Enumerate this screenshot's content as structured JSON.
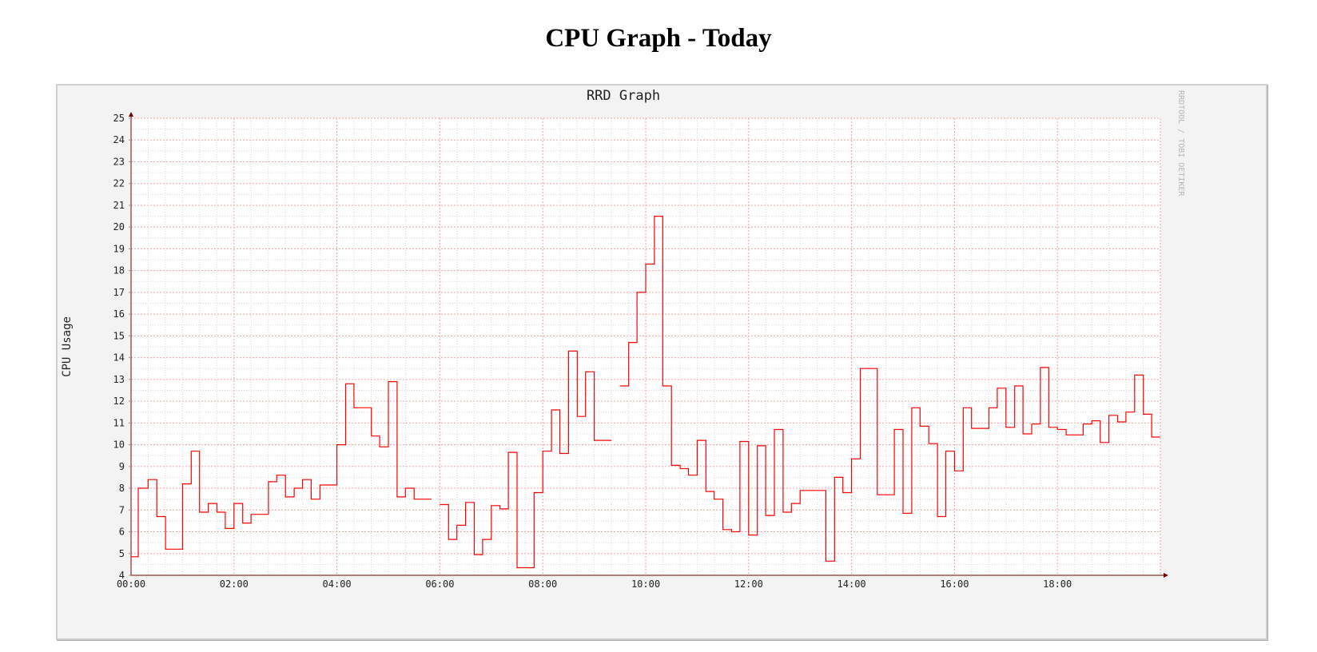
{
  "page": {
    "title": "CPU Graph - Today"
  },
  "chart_data": {
    "type": "line",
    "step": true,
    "title": "RRD Graph",
    "xlabel": "",
    "ylabel": "CPU Usage",
    "watermark": "RRDTOOL / TOBI OETIKER",
    "xlim": [
      0,
      20
    ],
    "ylim": [
      4,
      25
    ],
    "xticks": [
      "00:00",
      "02:00",
      "04:00",
      "06:00",
      "08:00",
      "10:00",
      "12:00",
      "14:00",
      "16:00",
      "18:00"
    ],
    "yticks": [
      4,
      5,
      6,
      7,
      8,
      9,
      10,
      11,
      12,
      13,
      14,
      15,
      16,
      17,
      18,
      19,
      20,
      21,
      22,
      23,
      24,
      25
    ],
    "grid": true,
    "colors": {
      "line": "#ff0000",
      "major_grid": "#f2a3a3",
      "minor_grid": "#e3d4d4",
      "axis": "#7a0000",
      "background": "#f3f3f3",
      "canvas": "#ffffff"
    },
    "series": [
      {
        "color": "#ff0000",
        "segments": [
          {
            "x": [
              0,
              0.14,
              0.33,
              0.5,
              0.67,
              1,
              1.17,
              1.33,
              1.5,
              1.67,
              1.83,
              2,
              2.17,
              2.33,
              2.5,
              2.67,
              2.83,
              3,
              3.17,
              3.33,
              3.5,
              3.67,
              4,
              4.17,
              4.33,
              4.67,
              4.83,
              5,
              5.17,
              5.33,
              5.5,
              5.67
            ],
            "y": [
              4.85,
              8.0,
              8.4,
              6.7,
              5.2,
              8.2,
              9.7,
              6.9,
              7.3,
              6.9,
              6.15,
              7.3,
              6.4,
              6.8,
              6.8,
              8.3,
              8.6,
              7.6,
              8.0,
              8.4,
              7.5,
              8.15,
              10.0,
              12.8,
              11.7,
              10.4,
              9.9,
              12.9,
              7.6,
              8.0,
              7.5,
              7.5
            ]
          },
          {
            "x": [
              6.0,
              6.17,
              6.33,
              6.5,
              6.67,
              6.83,
              7.0,
              7.17,
              7.33,
              7.5,
              7.83,
              8.0,
              8.17,
              8.33,
              8.5,
              8.67,
              8.83,
              9.0,
              9.17
            ],
            "y": [
              7.25,
              5.65,
              6.3,
              7.35,
              4.95,
              5.65,
              7.2,
              7.05,
              9.65,
              4.35,
              7.8,
              9.7,
              11.6,
              9.6,
              14.3,
              11.3,
              13.35,
              10.2,
              10.2
            ]
          },
          {
            "x": [
              9.5,
              9.67,
              9.83,
              10.0,
              10.17,
              10.33,
              10.5,
              10.67,
              10.83,
              11.0,
              11.17,
              11.33,
              11.5,
              11.67,
              11.83,
              12.0,
              12.17,
              12.33,
              12.5,
              12.67,
              12.83,
              13.0,
              13.17,
              13.5,
              13.67,
              13.83,
              14.0,
              14.17,
              14.5,
              14.83,
              15.0,
              15.17,
              15.33,
              15.5,
              15.67,
              15.83,
              16.0,
              16.17,
              16.33,
              16.67,
              16.83,
              17.0,
              17.17,
              17.33,
              17.5,
              17.67,
              17.83,
              18.0,
              18.17,
              18.33,
              18.5,
              18.67,
              18.83,
              19.0,
              19.17,
              19.33,
              19.5,
              19.67,
              19.83
            ],
            "y": [
              12.7,
              14.7,
              17.0,
              18.3,
              20.5,
              12.7,
              9.05,
              8.9,
              8.6,
              10.2,
              7.85,
              7.5,
              6.1,
              6.0,
              10.15,
              5.85,
              9.95,
              6.75,
              10.7,
              6.9,
              7.3,
              7.9,
              7.9,
              4.65,
              8.5,
              7.8,
              9.35,
              13.5,
              7.7,
              10.7,
              6.85,
              11.7,
              10.85,
              10.05,
              6.7,
              9.7,
              8.8,
              11.7,
              10.75,
              11.7,
              12.6,
              10.8,
              12.7,
              10.5,
              10.95,
              13.55,
              10.8,
              10.7,
              10.45,
              10.45,
              10.95,
              11.1,
              10.1,
              11.35,
              11.05,
              11.5,
              13.2,
              11.4,
              10.35
            ]
          }
        ]
      }
    ]
  }
}
